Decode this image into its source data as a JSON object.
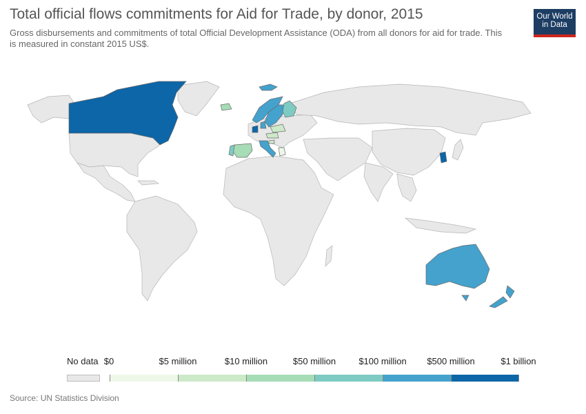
{
  "header": {
    "title": "Total official flows commitments for Aid for Trade, by donor, 2015",
    "subtitle": "Gross disbursements and commitments of total Official Development Assistance (ODA) from all donors for aid for trade. This is measured in constant 2015 US$.",
    "logo_line1": "Our World",
    "logo_line2": "in Data"
  },
  "legend": {
    "no_data_label": "No data",
    "no_data_color": "#e8e8e8",
    "labels": [
      "$0",
      "$5 million",
      "$10 million",
      "$50 million",
      "$100 million",
      "$500 million",
      "$1 billion"
    ],
    "colors": [
      "#eef8e8",
      "#cce9c8",
      "#a6dcb6",
      "#7dcbc3",
      "#44a2cd",
      "#0c66a8"
    ]
  },
  "map_data": {
    "no_data_color": "#e8e8e8",
    "border_color": "#b5b5b5",
    "highlighted": [
      {
        "country": "Canada",
        "bin": 5
      },
      {
        "country": "Korea, South",
        "bin": 5
      },
      {
        "country": "Netherlands",
        "bin": 5
      },
      {
        "country": "Sweden",
        "bin": 4
      },
      {
        "country": "Norway",
        "bin": 4
      },
      {
        "country": "Denmark",
        "bin": 4
      },
      {
        "country": "Italy",
        "bin": 4
      },
      {
        "country": "Australia",
        "bin": 4
      },
      {
        "country": "New Zealand",
        "bin": 4
      },
      {
        "country": "Finland",
        "bin": 3
      },
      {
        "country": "Spain",
        "bin": 2
      },
      {
        "country": "Ireland",
        "bin": 2
      },
      {
        "country": "Iceland",
        "bin": 4
      },
      {
        "country": "Poland",
        "bin": 1
      },
      {
        "country": "Czechia",
        "bin": 1
      },
      {
        "country": "Portugal",
        "bin": 3
      },
      {
        "country": "Slovenia",
        "bin": 1
      },
      {
        "country": "Greece",
        "bin": 0
      }
    ]
  },
  "footer": {
    "source": "Source: UN Statistics Division"
  }
}
